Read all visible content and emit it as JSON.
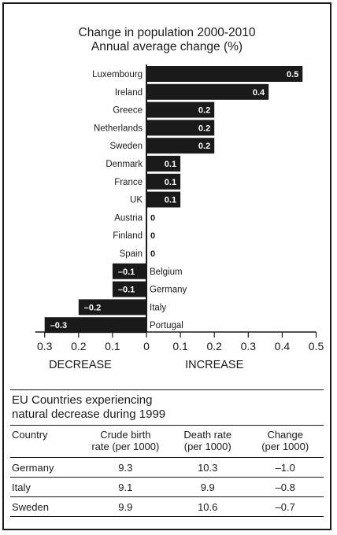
{
  "chart_data": {
    "type": "bar",
    "orientation": "horizontal",
    "title": [
      "Change in population 2000-2010",
      "Annual average change (%)"
    ],
    "categories": [
      "Luxembourg",
      "Ireland",
      "Greece",
      "Netherlands",
      "Sweden",
      "Denmark",
      "France",
      "UK",
      "Austria",
      "Finland",
      "Spain",
      "Belgium",
      "Germany",
      "Italy",
      "Portugal"
    ],
    "values": [
      0.46,
      0.36,
      0.2,
      0.2,
      0.2,
      0.1,
      0.1,
      0.1,
      0,
      0,
      0,
      -0.1,
      -0.1,
      -0.2,
      -0.3
    ],
    "value_labels": [
      "0.5",
      "0.4",
      "0.2",
      "0.2",
      "0.2",
      "0.1",
      "0.1",
      "0.1",
      "0",
      "0",
      "0",
      "–0.1",
      "–0.1",
      "–0.2",
      "–0.3"
    ],
    "x_tick_labels": [
      "0.3",
      "0.2",
      "0.1",
      "0",
      "0.1",
      "0.2",
      "0.3",
      "0.4",
      "0.5"
    ],
    "x_ticks": [
      -0.3,
      -0.2,
      -0.1,
      0,
      0.1,
      0.2,
      0.3,
      0.4,
      0.5
    ],
    "xlim": [
      -0.3,
      0.5
    ],
    "direction_labels": {
      "negative": "DECREASE",
      "positive": "INCREASE"
    },
    "grid": false,
    "legend": "none",
    "bar_color": "#1a1a1a"
  },
  "table": {
    "title_lines": [
      "EU Countries experiencing",
      "natural decrease during 1999"
    ],
    "headers": {
      "country": "Country",
      "birth": [
        "Crude birth",
        "rate (per 1000)"
      ],
      "death": [
        "Death rate",
        "(per 1000)"
      ],
      "change": [
        "Change",
        "(per 1000)"
      ]
    },
    "rows": [
      {
        "country": "Germany",
        "birth": "9.3",
        "death": "10.3",
        "change": "–1.0"
      },
      {
        "country": "Italy",
        "birth": "9.1",
        "death": "9.9",
        "change": "–0.8"
      },
      {
        "country": "Sweden",
        "birth": "9.9",
        "death": "10.6",
        "change": "–0.7"
      }
    ]
  }
}
